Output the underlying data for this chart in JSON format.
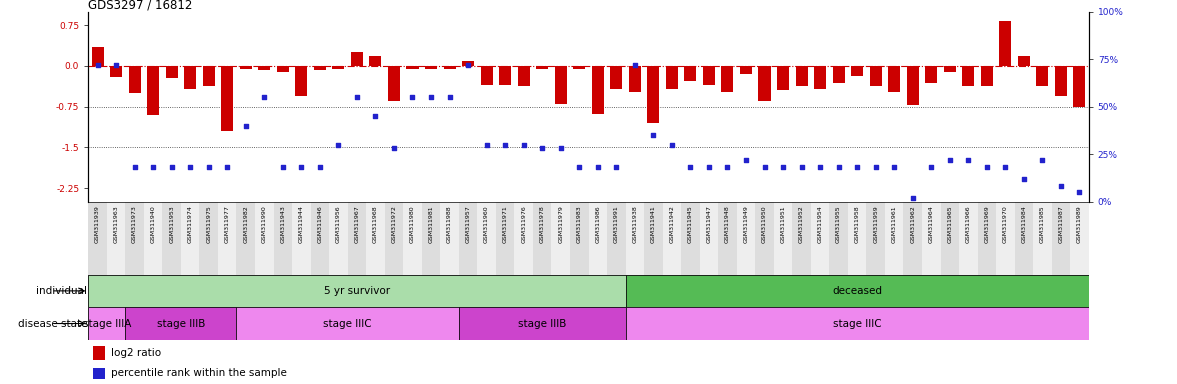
{
  "title": "GDS3297 / 16812",
  "samples": [
    "GSM311939",
    "GSM311963",
    "GSM311973",
    "GSM311940",
    "GSM311953",
    "GSM311974",
    "GSM311975",
    "GSM311977",
    "GSM311982",
    "GSM311990",
    "GSM311943",
    "GSM311944",
    "GSM311946",
    "GSM311956",
    "GSM311967",
    "GSM311968",
    "GSM311972",
    "GSM311980",
    "GSM311981",
    "GSM311988",
    "GSM311957",
    "GSM311960",
    "GSM311971",
    "GSM311976",
    "GSM311978",
    "GSM311979",
    "GSM311983",
    "GSM311986",
    "GSM311991",
    "GSM311938",
    "GSM311941",
    "GSM311942",
    "GSM311945",
    "GSM311947",
    "GSM311948",
    "GSM311949",
    "GSM311950",
    "GSM311951",
    "GSM311952",
    "GSM311954",
    "GSM311955",
    "GSM311958",
    "GSM311959",
    "GSM311961",
    "GSM311962",
    "GSM311964",
    "GSM311965",
    "GSM311966",
    "GSM311969",
    "GSM311970",
    "GSM311984",
    "GSM311985",
    "GSM311987",
    "GSM311989"
  ],
  "log2_ratio": [
    0.35,
    -0.2,
    -0.5,
    -0.9,
    -0.22,
    -0.42,
    -0.38,
    -1.2,
    -0.05,
    -0.08,
    -0.12,
    -0.55,
    -0.08,
    -0.05,
    0.25,
    0.18,
    -0.65,
    -0.05,
    -0.05,
    -0.05,
    0.08,
    -0.35,
    -0.35,
    -0.38,
    -0.05,
    -0.7,
    -0.05,
    -0.88,
    -0.42,
    -0.48,
    -1.05,
    -0.42,
    -0.28,
    -0.35,
    -0.48,
    -0.15,
    -0.65,
    -0.45,
    -0.38,
    -0.42,
    -0.32,
    -0.18,
    -0.38,
    -0.48,
    -0.72,
    -0.32,
    -0.12,
    -0.38,
    -0.38,
    0.82,
    0.18,
    -0.38,
    -0.55,
    -0.75
  ],
  "percentile": [
    72,
    72,
    18,
    18,
    18,
    18,
    18,
    18,
    40,
    55,
    18,
    18,
    18,
    30,
    55,
    45,
    28,
    55,
    55,
    55,
    72,
    30,
    30,
    30,
    28,
    28,
    18,
    18,
    18,
    72,
    35,
    30,
    18,
    18,
    18,
    22,
    18,
    18,
    18,
    18,
    18,
    18,
    18,
    18,
    2,
    18,
    22,
    22,
    18,
    18,
    12,
    22,
    8,
    5
  ],
  "individual_groups": [
    {
      "label": "5 yr survivor",
      "start": 0,
      "end": 29,
      "color": "#AADDAA"
    },
    {
      "label": "deceased",
      "start": 29,
      "end": 54,
      "color": "#55BB55"
    }
  ],
  "disease_groups": [
    {
      "label": "stage IIIA",
      "start": 0,
      "end": 2,
      "color": "#EE88EE"
    },
    {
      "label": "stage IIIB",
      "start": 2,
      "end": 8,
      "color": "#CC44CC"
    },
    {
      "label": "stage IIIC",
      "start": 8,
      "end": 20,
      "color": "#EE88EE"
    },
    {
      "label": "stage IIIB",
      "start": 20,
      "end": 29,
      "color": "#CC44CC"
    },
    {
      "label": "stage IIIC",
      "start": 29,
      "end": 54,
      "color": "#EE88EE"
    }
  ],
  "ylim_left": [
    -2.5,
    1.0
  ],
  "yticks_left": [
    0.75,
    0.0,
    -0.75,
    -1.5,
    -2.25
  ],
  "yticks_right": [
    100,
    75,
    50,
    25,
    0
  ],
  "bar_color": "#CC0000",
  "dot_color": "#2222CC",
  "hline0_color": "#CC0000",
  "hline_color": "#333333"
}
